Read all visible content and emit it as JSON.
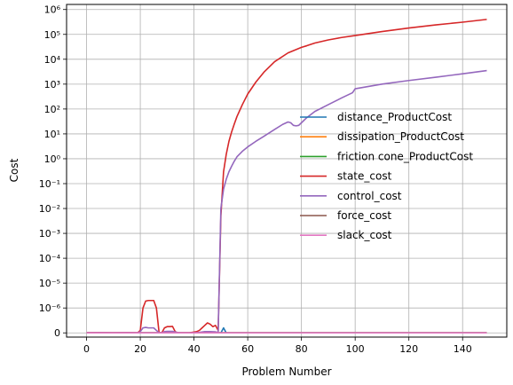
{
  "chart_data": {
    "type": "line",
    "xlabel": "Problem Number",
    "ylabel": "Cost",
    "xlim": [
      -7.45,
      156.45
    ],
    "xticks": [
      0,
      20,
      40,
      60,
      80,
      100,
      120,
      140
    ],
    "yscale": "symlog",
    "linthresh": 1e-06,
    "ylim": [
      -1.7e-07,
      1600000.0
    ],
    "yticks": [
      {
        "value": 0,
        "label": "0"
      },
      {
        "value": 1e-06,
        "label": "10⁻⁶"
      },
      {
        "value": 1e-05,
        "label": "10⁻⁵"
      },
      {
        "value": 0.0001,
        "label": "10⁻⁴"
      },
      {
        "value": 0.001,
        "label": "10⁻³"
      },
      {
        "value": 0.01,
        "label": "10⁻²"
      },
      {
        "value": 0.1,
        "label": "10⁻¹"
      },
      {
        "value": 1,
        "label": "10⁰"
      },
      {
        "value": 10,
        "label": "10¹"
      },
      {
        "value": 100,
        "label": "10²"
      },
      {
        "value": 1000,
        "label": "10³"
      },
      {
        "value": 10000,
        "label": "10⁴"
      },
      {
        "value": 100000,
        "label": "10⁵"
      },
      {
        "value": 1000000,
        "label": "10⁶"
      }
    ],
    "grid": true,
    "legend_position": "center-right",
    "series": [
      {
        "name": "distance_ProductCost",
        "color": "#1f77b4",
        "x": [
          0,
          48,
          50,
          51,
          52,
          53,
          149
        ],
        "y": [
          0,
          0,
          0,
          2e-07,
          0,
          0,
          0
        ]
      },
      {
        "name": "dissipation_ProductCost",
        "color": "#ff7f0e",
        "x": [
          0,
          149
        ],
        "y": [
          0,
          0
        ]
      },
      {
        "name": "friction cone_ProductCost",
        "color": "#2ca02c",
        "x": [
          0,
          149
        ],
        "y": [
          0,
          0
        ]
      },
      {
        "name": "state_cost",
        "color": "#d62728",
        "x": [
          0,
          5,
          10,
          15,
          19,
          20,
          21,
          22,
          23,
          24,
          25,
          26,
          27,
          28,
          29,
          30,
          31,
          32,
          33,
          34,
          35,
          38,
          41,
          42,
          43,
          44,
          45,
          46,
          47,
          48,
          49,
          50,
          51,
          52,
          53,
          54,
          55,
          56,
          58,
          60,
          63,
          66,
          70,
          75,
          80,
          82,
          85,
          90,
          95,
          100,
          110,
          120,
          130,
          140,
          149
        ],
        "y": [
          0,
          5e-09,
          3e-09,
          8e-09,
          2e-09,
          1e-07,
          1e-06,
          1.9e-06,
          2e-06,
          2e-06,
          2e-06,
          1e-06,
          1e-08,
          0,
          2e-07,
          2.5e-07,
          2.5e-07,
          2.6e-07,
          5e-08,
          0,
          0,
          0,
          5e-08,
          1e-07,
          2e-07,
          3e-07,
          4e-07,
          3.5e-07,
          2.5e-07,
          3e-07,
          1e-07,
          0.005,
          0.3,
          1.5,
          5,
          12,
          25,
          50,
          150,
          400,
          1200,
          3000,
          8000,
          18000,
          30000,
          35000,
          45000,
          60000,
          75000,
          90000,
          130000,
          180000,
          240000,
          310000,
          400000
        ]
      },
      {
        "name": "control_cost",
        "color": "#9467bd",
        "x": [
          0,
          5,
          10,
          15,
          19,
          20,
          21,
          22,
          23,
          24,
          25,
          26,
          27,
          28,
          29,
          30,
          32,
          34,
          35,
          40,
          42,
          44,
          46,
          48,
          49,
          50,
          51,
          52,
          53,
          54,
          55,
          56,
          58,
          60,
          63,
          66,
          70,
          73,
          75,
          76,
          77,
          78,
          79,
          80,
          82,
          85,
          90,
          95,
          99,
          100,
          110,
          120,
          130,
          140,
          149
        ],
        "y": [
          0,
          5e-09,
          3e-09,
          8e-09,
          2e-09,
          5e-08,
          2e-07,
          2.2e-07,
          2e-07,
          2e-07,
          2e-07,
          1e-07,
          1e-08,
          0,
          5e-08,
          6e-08,
          6e-08,
          1e-08,
          0,
          0,
          2e-08,
          5e-08,
          5e-08,
          4e-08,
          2e-08,
          0.01,
          0.06,
          0.15,
          0.3,
          0.5,
          0.8,
          1.2,
          2,
          3,
          5,
          8,
          15,
          24,
          30,
          28,
          22,
          21,
          22,
          28,
          45,
          80,
          150,
          280,
          450,
          650,
          1000,
          1400,
          1900,
          2600,
          3500
        ]
      },
      {
        "name": "force_cost",
        "color": "#8c564b",
        "x": [
          0,
          149
        ],
        "y": [
          0,
          0
        ]
      },
      {
        "name": "slack_cost",
        "color": "#e377c2",
        "x": [
          0,
          149
        ],
        "y": [
          0,
          0
        ]
      }
    ]
  }
}
